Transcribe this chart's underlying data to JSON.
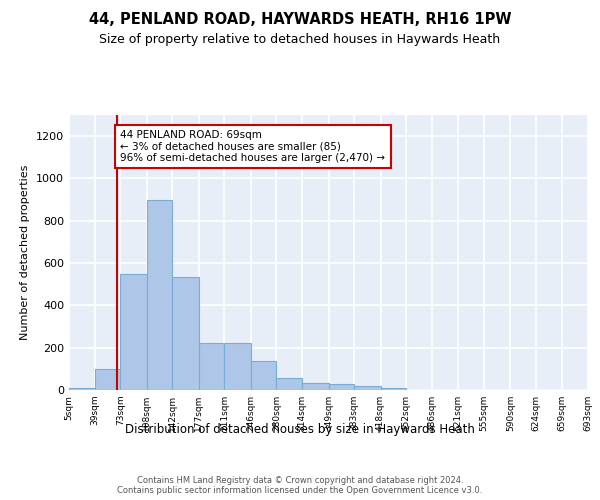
{
  "title": "44, PENLAND ROAD, HAYWARDS HEATH, RH16 1PW",
  "subtitle": "Size of property relative to detached houses in Haywards Heath",
  "xlabel": "Distribution of detached houses by size in Haywards Heath",
  "ylabel": "Number of detached properties",
  "bin_edges": [
    5,
    39,
    73,
    108,
    142,
    177,
    211,
    246,
    280,
    314,
    349,
    383,
    418,
    452,
    486,
    521,
    555,
    590,
    624,
    659,
    693
  ],
  "bar_heights": [
    10,
    100,
    550,
    900,
    535,
    220,
    220,
    135,
    55,
    35,
    28,
    18,
    8,
    0,
    0,
    0,
    0,
    0,
    0,
    0
  ],
  "bar_color": "#aec6e8",
  "bar_edge_color": "#7aadd4",
  "bar_edge_width": 0.8,
  "background_color": "#e8eef8",
  "grid_color": "#ffffff",
  "annotation_text": "44 PENLAND ROAD: 69sqm\n← 3% of detached houses are smaller (85)\n96% of semi-detached houses are larger (2,470) →",
  "vline_x": 69,
  "vline_color": "#cc0000",
  "annotation_box_facecolor": "#ffffff",
  "annotation_box_edgecolor": "#cc0000",
  "ylim": [
    0,
    1300
  ],
  "yticks": [
    0,
    200,
    400,
    600,
    800,
    1000,
    1200
  ],
  "footer_text": "Contains HM Land Registry data © Crown copyright and database right 2024.\nContains public sector information licensed under the Open Government Licence v3.0.",
  "tick_labels": [
    "5sqm",
    "39sqm",
    "73sqm",
    "108sqm",
    "142sqm",
    "177sqm",
    "211sqm",
    "246sqm",
    "280sqm",
    "314sqm",
    "349sqm",
    "383sqm",
    "418sqm",
    "452sqm",
    "486sqm",
    "521sqm",
    "555sqm",
    "590sqm",
    "624sqm",
    "659sqm",
    "693sqm"
  ]
}
